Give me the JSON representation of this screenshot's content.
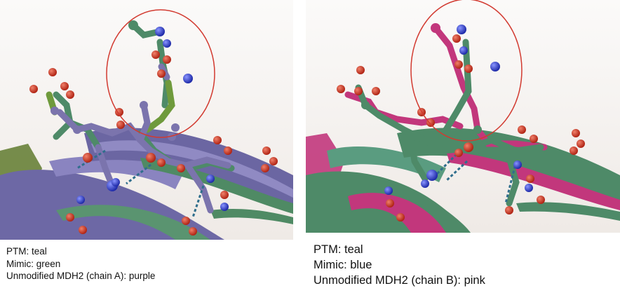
{
  "figure": {
    "left_panel": {
      "legend": {
        "ptm": "PTM: teal",
        "mimic": "Mimic: green",
        "unmodified": "Unmodified MDH2 (chain A): purple"
      },
      "colors": {
        "ptm": "#4e8a68",
        "mimic": "#6f9a3c",
        "unmodified": "#7b74ad",
        "highlight_circle": "#d23a30"
      }
    },
    "right_panel": {
      "legend": {
        "ptm": "PTM: teal",
        "mimic": "Mimic: blue",
        "unmodified": "Unmodified MDH2 (chain B): pink"
      },
      "colors": {
        "ptm": "#4e8a68",
        "mimic": "#3a4fd0",
        "unmodified": "#c2377c",
        "highlight_circle": "#d23a30"
      }
    },
    "atom_colors": {
      "oxygen": "#d0321e",
      "nitrogen": "#2e3fd6"
    }
  }
}
